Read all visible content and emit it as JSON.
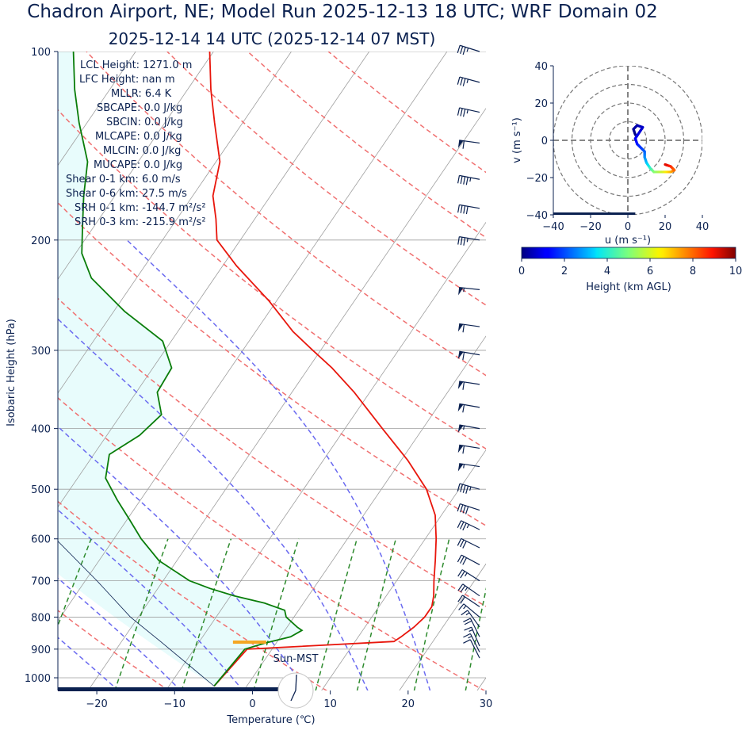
{
  "chart_data": [
    {
      "type": "skew-t",
      "title": "Chadron Airport, NE; Model Run 2025-12-13 18 UTC; WRF Domain 02",
      "subtitle": "2025-12-14 14 UTC  (2025-12-14 07 MST)",
      "xlabel": "Temperature (℃)",
      "ylabel": "Isobaric Height (hPa)",
      "xlim": [
        -25,
        30
      ],
      "ylim": [
        1050,
        100
      ],
      "log_y": true,
      "grid": true,
      "x_ticks": [
        -20,
        -10,
        0,
        10,
        20,
        30
      ],
      "x_tick_labels": [
        "−20",
        "−10",
        "0",
        "10",
        "20",
        "30"
      ],
      "y_ticks": [
        1000,
        900,
        800,
        700,
        600,
        500,
        400,
        300,
        200,
        100
      ],
      "y_tick_labels": [
        "1000",
        "900",
        "800",
        "700",
        "600",
        "500",
        "400",
        "300",
        "200",
        "100"
      ],
      "stats": [
        "LCL Height: 1271.0 m",
        "LFC Height: nan m",
        "MLLR: 6.4 K",
        "SBCAPE: 0.0 J/kg",
        "SBCIN: 0.0 J/kg",
        "MLCAPE: 0.0 J/kg",
        "MLCIN: 0.0 J/kg",
        "MUCAPE: 0.0 J/kg",
        "Shear 0-1 km: 6.0 m/s",
        "Shear 0-6 km: 27.5 m/s",
        "SRH 0-1 km: -144.7 m²/s²",
        "SRH 0-3 km: -215.9 m²/s²"
      ],
      "sun_label": "Sun-MST",
      "series": [
        {
          "role": "temperature",
          "color": "#e8160c",
          "points": [
            [
              1031,
              -4.2
            ],
            [
              900,
              -3.2
            ],
            [
              875,
              15.0
            ],
            [
              860,
              15.5
            ],
            [
              830,
              16.3
            ],
            [
              800,
              16.8
            ],
            [
              770,
              16.8
            ],
            [
              740,
              16.1
            ],
            [
              700,
              14.8
            ],
            [
              650,
              13.2
            ],
            [
              600,
              11.4
            ],
            [
              550,
              9.2
            ],
            [
              500,
              5.8
            ],
            [
              450,
              0.9
            ],
            [
              400,
              -5.2
            ],
            [
              350,
              -12.0
            ],
            [
              320,
              -17.0
            ],
            [
              300,
              -21.0
            ],
            [
              280,
              -25.2
            ],
            [
              250,
              -31.0
            ],
            [
              220,
              -38.2
            ],
            [
              200,
              -43.0
            ],
            [
              185,
              -45.0
            ],
            [
              170,
              -47.4
            ],
            [
              150,
              -49.5
            ],
            [
              130,
              -53.6
            ],
            [
              115,
              -57.0
            ],
            [
              100,
              -60.5
            ]
          ]
        },
        {
          "role": "dewpoint",
          "color": "#0a7d0a",
          "points": [
            [
              1031,
              -4.2
            ],
            [
              900,
              -3.5
            ],
            [
              880,
              -1.4
            ],
            [
              860,
              1.3
            ],
            [
              840,
              2.2
            ],
            [
              830,
              1.3
            ],
            [
              800,
              -1.0
            ],
            [
              780,
              -1.8
            ],
            [
              760,
              -5.0
            ],
            [
              740,
              -9.5
            ],
            [
              720,
              -13.3
            ],
            [
              700,
              -16.6
            ],
            [
              650,
              -22.3
            ],
            [
              600,
              -26.5
            ],
            [
              560,
              -29.6
            ],
            [
              520,
              -33.0
            ],
            [
              480,
              -36.4
            ],
            [
              440,
              -38.0
            ],
            [
              410,
              -35.8
            ],
            [
              380,
              -34.8
            ],
            [
              350,
              -37.3
            ],
            [
              320,
              -37.6
            ],
            [
              290,
              -41.1
            ],
            [
              260,
              -48.6
            ],
            [
              230,
              -55.8
            ],
            [
              210,
              -59.2
            ],
            [
              190,
              -61.5
            ],
            [
              170,
              -64.0
            ],
            [
              150,
              -66.5
            ],
            [
              130,
              -71.0
            ],
            [
              115,
              -74.5
            ],
            [
              100,
              -78.0
            ]
          ]
        },
        {
          "role": "parcel",
          "color": "#0b2150",
          "points": [
            [
              1031,
              -4.2
            ],
            [
              875,
              -15.0
            ],
            [
              800,
              -21.0
            ],
            [
              700,
              -28.5
            ],
            [
              600,
              -37.5
            ],
            [
              500,
              -48.0
            ],
            [
              400,
              -60.0
            ],
            [
              300,
              -75.0
            ]
          ]
        }
      ],
      "lcl": {
        "pressure": 877,
        "temperature": -3.5,
        "color": "#f5a623"
      },
      "dry_adiabats_theta_K": [
        260,
        280,
        300,
        320,
        340,
        360,
        380,
        400,
        420,
        440
      ],
      "moist_adiabats_start_C": [
        -16,
        -8,
        0,
        8,
        16,
        24
      ],
      "mixing_ratios_g_per_kg": [
        0.4,
        1,
        2,
        4,
        7,
        10,
        16,
        24
      ],
      "wind_barbs": [
        {
          "p": 100,
          "u": 32,
          "v": -10
        },
        {
          "p": 112,
          "u": 33,
          "v": -9
        },
        {
          "p": 125,
          "u": 36,
          "v": -8
        },
        {
          "p": 140,
          "u": 58,
          "v": -8
        },
        {
          "p": 160,
          "u": 42,
          "v": -8
        },
        {
          "p": 178,
          "u": 40,
          "v": -7
        },
        {
          "p": 200,
          "u": 37,
          "v": -6
        },
        {
          "p": 240,
          "u": 55,
          "v": -6
        },
        {
          "p": 275,
          "u": 57,
          "v": -8
        },
        {
          "p": 305,
          "u": 59,
          "v": -10
        },
        {
          "p": 340,
          "u": 59,
          "v": -9
        },
        {
          "p": 370,
          "u": 57,
          "v": -10
        },
        {
          "p": 400,
          "u": 55,
          "v": -10
        },
        {
          "p": 430,
          "u": 57,
          "v": -9
        },
        {
          "p": 460,
          "u": 53,
          "v": -8
        },
        {
          "p": 500,
          "u": 42,
          "v": -12
        },
        {
          "p": 540,
          "u": 40,
          "v": -13
        },
        {
          "p": 580,
          "u": 33,
          "v": -16
        },
        {
          "p": 620,
          "u": 28,
          "v": -14
        },
        {
          "p": 660,
          "u": 26,
          "v": -14
        },
        {
          "p": 700,
          "u": 22,
          "v": -14
        },
        {
          "p": 740,
          "u": 20,
          "v": -14
        },
        {
          "p": 770,
          "u": 18,
          "v": -12
        },
        {
          "p": 800,
          "u": 12,
          "v": -10
        },
        {
          "p": 830,
          "u": 10,
          "v": -14
        },
        {
          "p": 860,
          "u": 8,
          "v": -16
        },
        {
          "p": 890,
          "u": 6,
          "v": -14
        },
        {
          "p": 910,
          "u": 6,
          "v": -12
        },
        {
          "p": 930,
          "u": 5,
          "v": -10
        }
      ]
    },
    {
      "type": "hodograph",
      "xlabel": "u (m s⁻¹)",
      "ylabel": "v (m s⁻¹)",
      "xlim": [
        -40,
        40
      ],
      "ylim": [
        -40,
        40
      ],
      "x_ticks": [
        -40,
        -20,
        0,
        20,
        40
      ],
      "x_tick_labels": [
        "−40",
        "−20",
        "0",
        "20",
        "40"
      ],
      "y_ticks": [
        -40,
        -20,
        0,
        20,
        40
      ],
      "y_tick_labels": [
        "−40",
        "−20",
        "0",
        "20",
        "40"
      ],
      "range_rings_ms": [
        10,
        20,
        30,
        40
      ],
      "colorbar": {
        "label": "Height (km AGL)",
        "ticks": [
          0,
          2,
          4,
          6,
          8,
          10
        ],
        "range": [
          0,
          10
        ]
      },
      "points": [
        {
          "h": 0.0,
          "u": 4,
          "v": 3
        },
        {
          "h": 0.2,
          "u": 3,
          "v": 6
        },
        {
          "h": 0.4,
          "u": 5,
          "v": 8
        },
        {
          "h": 0.6,
          "u": 8,
          "v": 7
        },
        {
          "h": 0.8,
          "u": 6,
          "v": 4
        },
        {
          "h": 1.0,
          "u": 4,
          "v": 1
        },
        {
          "h": 1.3,
          "u": 5,
          "v": -2
        },
        {
          "h": 1.6,
          "u": 7,
          "v": -4
        },
        {
          "h": 2.0,
          "u": 9,
          "v": -6
        },
        {
          "h": 2.5,
          "u": 9,
          "v": -9
        },
        {
          "h": 3.0,
          "u": 10,
          "v": -12
        },
        {
          "h": 4.0,
          "u": 12,
          "v": -15
        },
        {
          "h": 5.0,
          "u": 14,
          "v": -17
        },
        {
          "h": 6.0,
          "u": 19,
          "v": -17
        },
        {
          "h": 7.0,
          "u": 23,
          "v": -17
        },
        {
          "h": 7.8,
          "u": 25,
          "v": -16
        },
        {
          "h": 8.5,
          "u": 23,
          "v": -14
        },
        {
          "h": 9.2,
          "u": 20,
          "v": -13
        }
      ]
    }
  ],
  "colors": {
    "text": "#0b2150",
    "temperature": "#e8160c",
    "dewpoint": "#0a7d0a",
    "dry_adiabat": "#f07070",
    "moist_adiabat": "#6a6af0",
    "mixing_ratio": "#2e8b2e",
    "isotherm": "#9e9e9e",
    "cape_fill": "#e8fcfc",
    "lcl": "#f5a623"
  }
}
